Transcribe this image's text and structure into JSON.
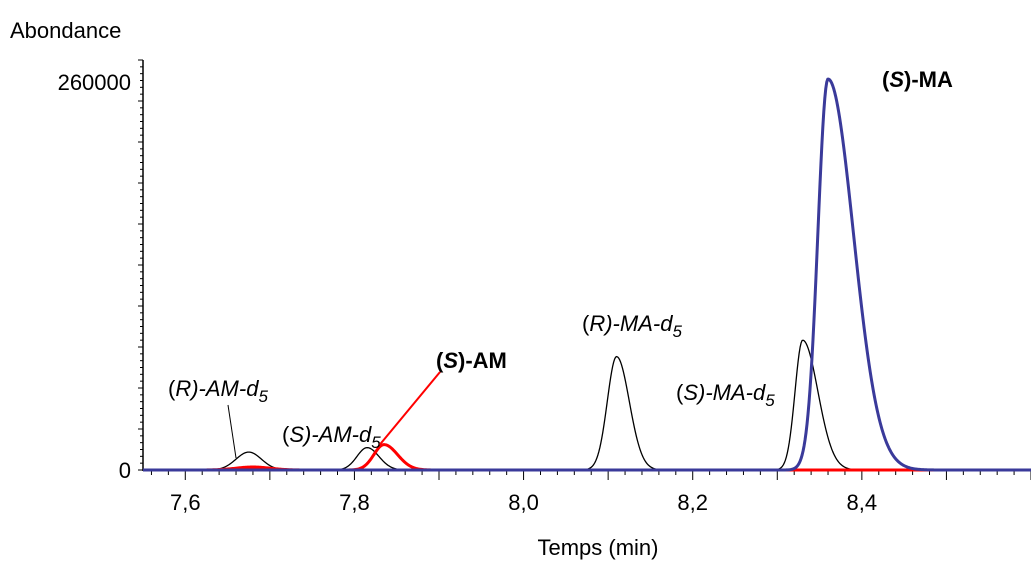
{
  "chart_data": {
    "type": "line",
    "ylabel": "Abondance",
    "xlabel": "Temps (min)",
    "xlim": [
      7.55,
      8.6
    ],
    "ylim": [
      0,
      260000
    ],
    "x_tick_labels": [
      "7,6",
      "7,8",
      "8,0",
      "8,2",
      "8,4"
    ],
    "x_ticks": [
      7.6,
      7.8,
      8.0,
      8.2,
      8.4
    ],
    "y_tick_labels": [
      "0",
      "260000"
    ],
    "y_ticks": [
      0,
      260000
    ],
    "grid": false,
    "series": [
      {
        "name": "(S)-MA",
        "color": "#3a3a9a",
        "peaks": [
          {
            "center": 8.36,
            "height": 262000,
            "sigma_left": 0.012,
            "sigma_right": 0.03
          }
        ]
      },
      {
        "name": "(S)-AM",
        "color": "#ff0000",
        "peaks": [
          {
            "center": 7.835,
            "height": 17000,
            "sigma_left": 0.012,
            "sigma_right": 0.016
          },
          {
            "center": 7.68,
            "height": 2000,
            "sigma_left": 0.02,
            "sigma_right": 0.02
          }
        ]
      },
      {
        "color": "#000000",
        "peaks": [
          {
            "center": 7.675,
            "height": 12000,
            "sigma_left": 0.015,
            "sigma_right": 0.015
          },
          {
            "center": 7.815,
            "height": 15000,
            "sigma_left": 0.012,
            "sigma_right": 0.014
          },
          {
            "center": 8.11,
            "height": 76000,
            "sigma_left": 0.011,
            "sigma_right": 0.015
          },
          {
            "center": 8.33,
            "height": 87000,
            "sigma_left": 0.009,
            "sigma_right": 0.018
          }
        ]
      }
    ],
    "annotations": [
      {
        "parts": [
          [
            "(",
            "n"
          ],
          [
            "R",
            "i"
          ],
          [
            ")-AM-",
            "i"
          ],
          [
            "d",
            "i"
          ],
          [
            "5",
            "sub"
          ]
        ],
        "pointer_to": [
          7.66,
          8000
        ]
      },
      {
        "parts": [
          [
            "(",
            "n"
          ],
          [
            "S",
            "i"
          ],
          [
            ")-AM-",
            "i"
          ],
          [
            "d",
            "i"
          ],
          [
            "5",
            "sub"
          ]
        ]
      },
      {
        "parts": [
          [
            "(",
            "b"
          ],
          [
            "S",
            "bi"
          ],
          [
            ")-AM",
            "b"
          ]
        ],
        "color": "#ff0000",
        "pointer_to": [
          7.83,
          17000
        ]
      },
      {
        "parts": [
          [
            "(",
            "n"
          ],
          [
            "R",
            "i"
          ],
          [
            ")-MA-",
            "i"
          ],
          [
            "d",
            "i"
          ],
          [
            "5",
            "sub"
          ]
        ]
      },
      {
        "parts": [
          [
            "(",
            "n"
          ],
          [
            "S",
            "i"
          ],
          [
            ")-MA-",
            "i"
          ],
          [
            "d",
            "i"
          ],
          [
            "5",
            "sub"
          ]
        ]
      },
      {
        "parts": [
          [
            "(",
            "b"
          ],
          [
            "S",
            "bi"
          ],
          [
            ")-MA",
            "b"
          ]
        ],
        "color": "#3a3a9a"
      }
    ]
  }
}
